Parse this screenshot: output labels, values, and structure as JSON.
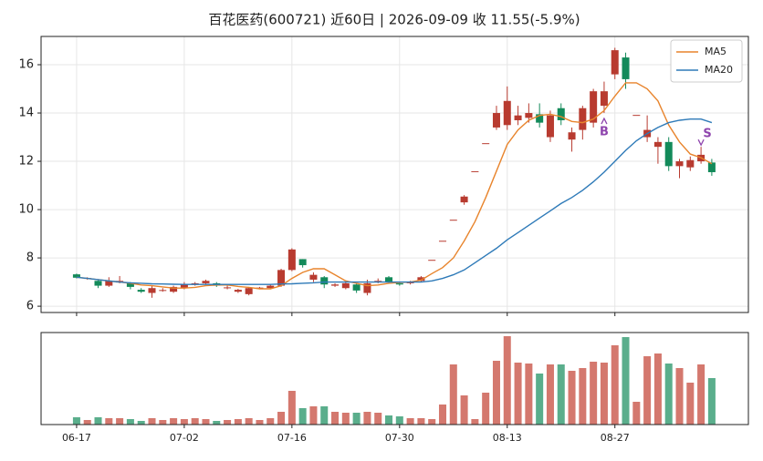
{
  "chart_data": {
    "type": "candlestick",
    "title": "百花医药(600721) 近60日  |  2026-09-09 收 11.55(-5.9%)",
    "categories": [
      "06-17",
      "06-18",
      "06-22",
      "06-23",
      "06-24",
      "06-25",
      "06-26",
      "06-29",
      "06-30",
      "07-01",
      "07-02",
      "07-03",
      "07-06",
      "07-07",
      "07-08",
      "07-09",
      "07-10",
      "07-13",
      "07-14",
      "07-15",
      "07-16",
      "07-17",
      "07-20",
      "07-21",
      "07-22",
      "07-23",
      "07-24",
      "07-27",
      "07-28",
      "07-29",
      "07-30",
      "07-31",
      "08-03",
      "08-04",
      "08-05",
      "08-06",
      "08-07",
      "08-10",
      "08-11",
      "08-12",
      "08-13",
      "08-14",
      "08-17",
      "08-18",
      "08-19",
      "08-20",
      "08-21",
      "08-24",
      "08-25",
      "08-26",
      "08-27",
      "08-28",
      "08-31",
      "09-01",
      "09-02",
      "09-03",
      "09-04",
      "09-07",
      "09-08",
      "09-09"
    ],
    "open": [
      7.32,
      7.15,
      7.05,
      6.85,
      6.98,
      6.95,
      6.68,
      6.55,
      6.65,
      6.6,
      6.75,
      6.9,
      6.95,
      6.95,
      6.75,
      6.6,
      6.5,
      6.75,
      6.75,
      6.85,
      7.5,
      7.95,
      7.1,
      7.2,
      6.85,
      6.75,
      6.9,
      6.55,
      7.0,
      7.2,
      6.95,
      6.95,
      7.05,
      7.92,
      8.71,
      9.58,
      10.3,
      11.59,
      12.75,
      13.4,
      13.5,
      13.7,
      13.8,
      13.95,
      13.0,
      14.2,
      12.9,
      13.3,
      13.6,
      14.3,
      15.6,
      16.3,
      13.92,
      13.0,
      12.6,
      12.8,
      11.8,
      11.75,
      12.0,
      11.95
    ],
    "high": [
      7.35,
      7.2,
      7.1,
      7.2,
      7.25,
      7.0,
      6.75,
      6.85,
      6.75,
      6.85,
      7.0,
      7.0,
      7.1,
      7.0,
      6.85,
      6.72,
      6.8,
      6.8,
      6.9,
      7.55,
      8.4,
      7.95,
      7.4,
      7.25,
      6.95,
      7.0,
      6.95,
      7.1,
      7.15,
      7.25,
      7.0,
      7.05,
      7.25,
      7.92,
      8.71,
      9.58,
      10.6,
      11.59,
      12.75,
      14.3,
      15.1,
      14.3,
      14.4,
      14.4,
      14.1,
      14.4,
      13.4,
      14.3,
      15.0,
      15.3,
      16.7,
      16.5,
      13.92,
      13.9,
      13.0,
      13.0,
      12.1,
      12.2,
      12.6,
      12.1
    ],
    "low": [
      7.15,
      7.1,
      6.75,
      6.8,
      6.95,
      6.7,
      6.55,
      6.35,
      6.6,
      6.55,
      6.7,
      6.85,
      6.9,
      6.8,
      6.7,
      6.55,
      6.45,
      6.7,
      6.7,
      6.8,
      7.45,
      7.6,
      7.0,
      6.75,
      6.8,
      6.7,
      6.55,
      6.45,
      6.95,
      6.95,
      6.85,
      6.9,
      7.0,
      7.92,
      8.71,
      9.58,
      10.2,
      11.59,
      12.75,
      13.3,
      13.3,
      13.5,
      13.6,
      13.4,
      12.8,
      13.5,
      12.4,
      12.9,
      13.4,
      14.0,
      15.4,
      15.0,
      13.92,
      12.8,
      11.9,
      11.6,
      11.3,
      11.6,
      11.9,
      11.4
    ],
    "close": [
      7.18,
      7.17,
      6.85,
      7.05,
      7.05,
      6.8,
      6.6,
      6.75,
      6.67,
      6.8,
      6.9,
      6.95,
      7.05,
      6.85,
      6.78,
      6.68,
      6.75,
      6.77,
      6.85,
      7.5,
      8.35,
      7.7,
      7.3,
      6.9,
      6.9,
      6.95,
      6.65,
      6.95,
      7.05,
      7.0,
      6.9,
      7.0,
      7.2,
      7.92,
      8.71,
      9.58,
      10.54,
      11.59,
      12.75,
      14.0,
      14.5,
      13.9,
      14.0,
      13.6,
      13.9,
      13.7,
      13.2,
      14.2,
      14.9,
      14.9,
      16.6,
      15.4,
      13.92,
      13.3,
      12.8,
      11.8,
      12.0,
      12.05,
      12.27,
      11.55
    ],
    "up_color": "#b83b30",
    "down_color": "#138a5a",
    "series": [
      {
        "name": "MA5",
        "color": "#e8842c",
        "values": [
          7.2,
          7.15,
          7.1,
          7.05,
          7.0,
          6.95,
          6.88,
          6.85,
          6.8,
          6.75,
          6.75,
          6.78,
          6.85,
          6.88,
          6.88,
          6.82,
          6.78,
          6.72,
          6.72,
          6.85,
          7.15,
          7.4,
          7.55,
          7.55,
          7.3,
          7.05,
          6.95,
          6.85,
          6.88,
          6.95,
          6.98,
          7.0,
          7.08,
          7.35,
          7.6,
          8.0,
          8.7,
          9.5,
          10.5,
          11.6,
          12.7,
          13.3,
          13.7,
          13.9,
          13.95,
          13.85,
          13.65,
          13.6,
          13.75,
          14.1,
          14.7,
          15.25,
          15.25,
          15.0,
          14.5,
          13.5,
          12.8,
          12.3,
          12.15,
          11.9
        ]
      },
      {
        "name": "MA20",
        "color": "#2e7ab8",
        "values": [
          7.2,
          7.15,
          7.1,
          7.05,
          7.0,
          6.97,
          6.95,
          6.93,
          6.92,
          6.91,
          6.9,
          6.9,
          6.9,
          6.9,
          6.9,
          6.9,
          6.9,
          6.9,
          6.9,
          6.92,
          6.93,
          6.95,
          6.97,
          7.0,
          7.0,
          7.0,
          7.0,
          7.0,
          7.0,
          7.0,
          7.0,
          7.0,
          7.0,
          7.05,
          7.15,
          7.3,
          7.5,
          7.8,
          8.1,
          8.4,
          8.75,
          9.05,
          9.35,
          9.65,
          9.95,
          10.25,
          10.5,
          10.8,
          11.15,
          11.55,
          12.0,
          12.45,
          12.85,
          13.15,
          13.4,
          13.6,
          13.7,
          13.75,
          13.75,
          13.6
        ]
      }
    ],
    "signals": [
      {
        "label": "B",
        "index": 49,
        "side": "buy"
      },
      {
        "label": "S",
        "index": 58,
        "side": "sell"
      }
    ],
    "signal_color": "#8e44ad",
    "xlim": [
      -3.3,
      62.4
    ],
    "ylim": [
      5.74,
      17.17
    ],
    "yticks": [
      6,
      8,
      10,
      12,
      14,
      16
    ],
    "xticks": [
      "06-17",
      "07-02",
      "07-16",
      "07-30",
      "08-13",
      "08-27"
    ],
    "grid": true,
    "legend": "upper right",
    "volume": {
      "values": [
        8,
        5,
        8,
        7,
        7,
        6,
        4,
        7,
        5,
        7,
        6,
        7,
        6,
        4,
        5,
        6,
        7,
        5,
        7,
        14,
        37,
        18,
        20,
        20,
        14,
        13,
        13,
        14,
        13,
        10,
        9,
        7,
        7,
        6,
        22,
        66,
        32,
        6,
        35,
        70,
        97,
        68,
        67,
        56,
        66,
        66,
        59,
        62,
        69,
        68,
        87,
        96,
        25,
        75,
        78,
        67,
        62,
        46,
        66,
        51
      ],
      "ylim": [
        0,
        101
      ],
      "up_color": "#d4786e",
      "down_color": "#5aae8c"
    }
  }
}
